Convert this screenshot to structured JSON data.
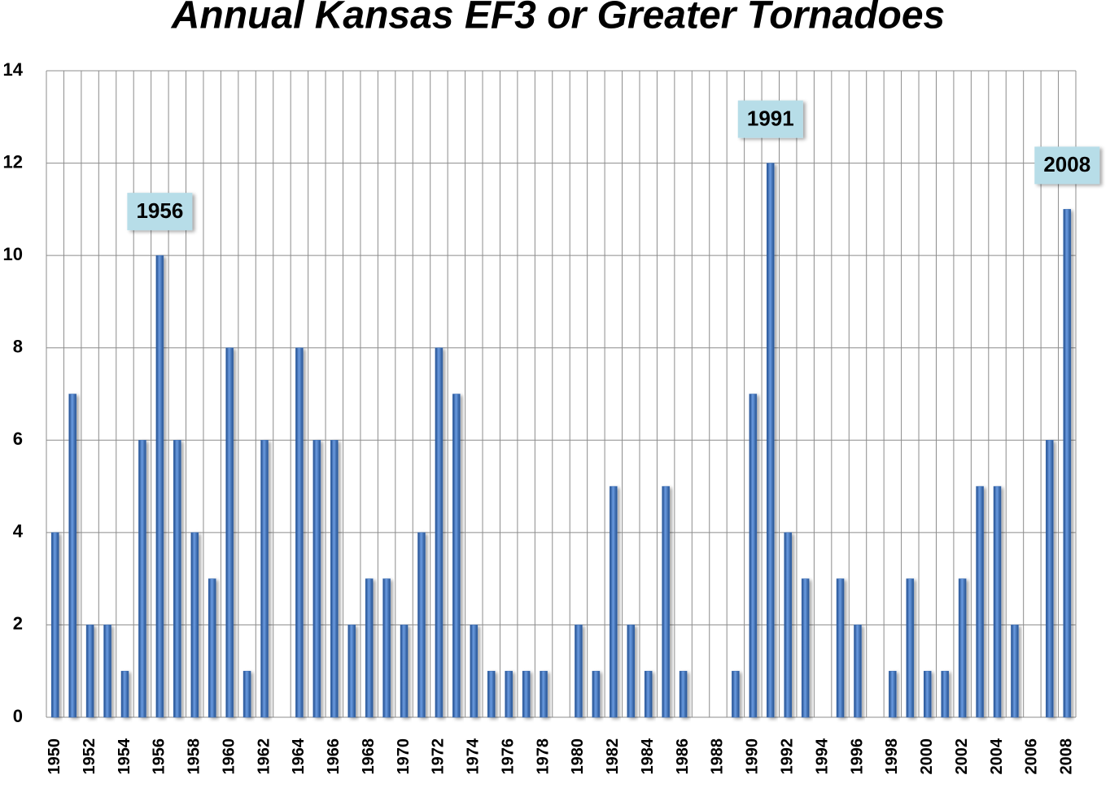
{
  "chart_data": {
    "type": "bar",
    "title": "Annual Kansas EF3 or Greater Tornadoes",
    "categories": [
      "1950",
      null,
      "1952",
      null,
      "1954",
      null,
      "1956",
      null,
      "1958",
      null,
      "1960",
      null,
      "1962",
      null,
      "1964",
      null,
      "1966",
      null,
      "1968",
      null,
      "1970",
      null,
      "1972",
      null,
      "1974",
      null,
      "1976",
      null,
      "1978",
      null,
      "1980",
      null,
      "1982",
      null,
      "1984",
      null,
      "1986",
      null,
      "1988",
      null,
      "1990",
      null,
      "1992",
      null,
      "1994",
      null,
      "1996",
      null,
      "1998",
      null,
      "2000",
      null,
      "2002",
      null,
      "2004",
      null,
      "2006",
      null,
      "2008"
    ],
    "values": [
      4,
      7,
      2,
      2,
      1,
      6,
      10,
      6,
      4,
      3,
      8,
      1,
      6,
      0,
      8,
      6,
      6,
      2,
      3,
      3,
      2,
      4,
      8,
      7,
      2,
      1,
      1,
      1,
      1,
      0,
      2,
      1,
      5,
      2,
      1,
      5,
      1,
      0,
      0,
      1,
      7,
      12,
      4,
      3,
      0,
      3,
      2,
      0,
      1,
      3,
      1,
      1,
      3,
      5,
      5,
      2,
      0,
      6,
      11
    ],
    "color": "#3a6db5",
    "ylim": [
      0,
      14
    ],
    "yticks": [
      0,
      2,
      4,
      6,
      8,
      10,
      12,
      14
    ],
    "grid": true,
    "annotations": [
      "1956",
      "1991",
      "2008"
    ]
  }
}
